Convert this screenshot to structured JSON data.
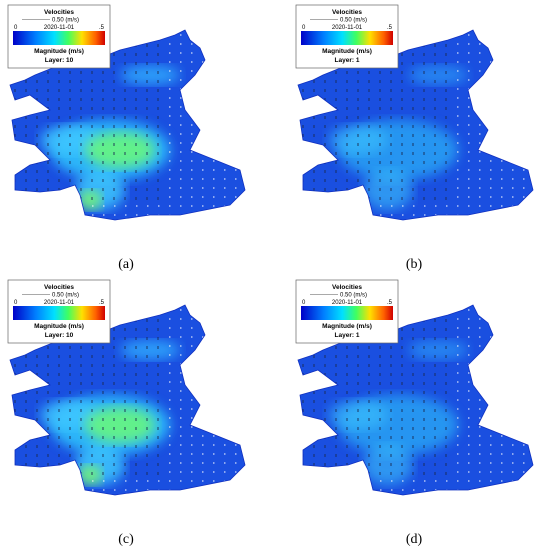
{
  "panels": [
    {
      "legend": {
        "title": "Velocities",
        "scale": "0.50 (m/s)",
        "date": "2020-11-01",
        "min": "0",
        "max": ".5",
        "label": "Magnitude (m/s)",
        "layer": "Layer: 10"
      },
      "caption": "(a)"
    },
    {
      "legend": {
        "title": "Velocities",
        "scale": "0.50 (m/s)",
        "date": "2020-11-01",
        "min": "0",
        "max": ".5",
        "label": "Magnitude (m/s)",
        "layer": "Layer: 1"
      },
      "caption": "(b)"
    },
    {
      "legend": {
        "title": "Velocities",
        "scale": "0.50 (m/s)",
        "date": "2020-11-01",
        "min": "0",
        "max": ".5",
        "label": "Magnitude (m/s)",
        "layer": "Layer: 10"
      },
      "caption": "(c)"
    },
    {
      "legend": {
        "title": "Velocities",
        "scale": "0.50 (m/s)",
        "date": "2020-11-01",
        "min": "0",
        "max": ".5",
        "label": "Magnitude (m/s)",
        "layer": "Layer: 1"
      },
      "caption": "(d)"
    }
  ]
}
